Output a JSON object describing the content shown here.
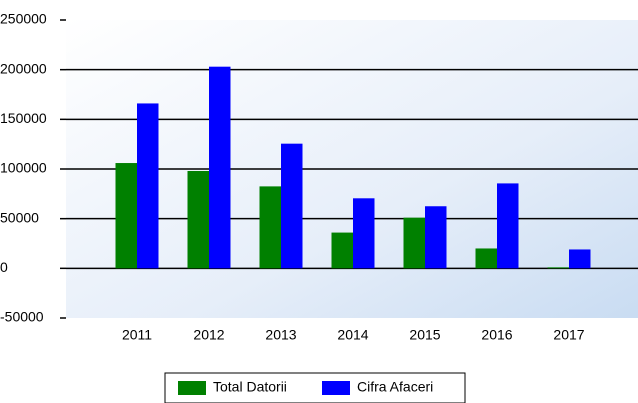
{
  "chart_data": {
    "type": "bar",
    "categories": [
      "2011",
      "2012",
      "2013",
      "2014",
      "2015",
      "2016",
      "2017"
    ],
    "series": [
      {
        "name": "Total Datorii",
        "color": "#008000",
        "values": [
          106000,
          98000,
          82500,
          36000,
          51000,
          20000,
          1000
        ]
      },
      {
        "name": "Cifra Afaceri",
        "color": "#0000ff",
        "values": [
          166000,
          203000,
          125500,
          70500,
          62500,
          85500,
          19000
        ]
      }
    ],
    "ylim": [
      -50000,
      250000
    ],
    "yticks": [
      -50000,
      0,
      50000,
      100000,
      150000,
      200000,
      250000
    ],
    "grid": true,
    "legend": "bottom"
  }
}
